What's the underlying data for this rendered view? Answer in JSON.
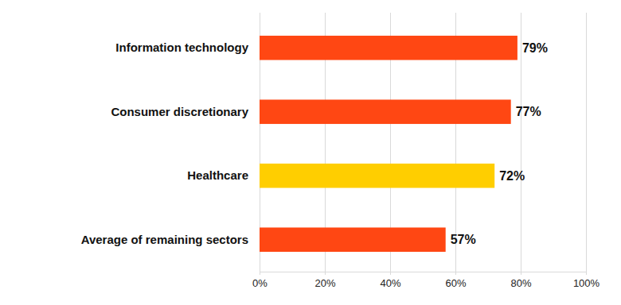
{
  "chart_data": {
    "type": "bar",
    "orientation": "horizontal",
    "categories": [
      "Information technology",
      "Consumer discretionary",
      "Healthcare",
      "Average of remaining sectors"
    ],
    "values": [
      79,
      77,
      72,
      57
    ],
    "value_labels": [
      "79%",
      "77%",
      "72%",
      "57%"
    ],
    "colors": [
      "#FF4713",
      "#FF4713",
      "#FFCE00",
      "#FF4713"
    ],
    "xlim": [
      0,
      100
    ],
    "xticks": [
      {
        "value": 0,
        "label": "0%"
      },
      {
        "value": 20,
        "label": "20%"
      },
      {
        "value": 40,
        "label": "40%"
      },
      {
        "value": 60,
        "label": "60%"
      },
      {
        "value": 80,
        "label": "80%"
      },
      {
        "value": 100,
        "label": "100%"
      }
    ],
    "grid": true,
    "data_labels": true
  }
}
